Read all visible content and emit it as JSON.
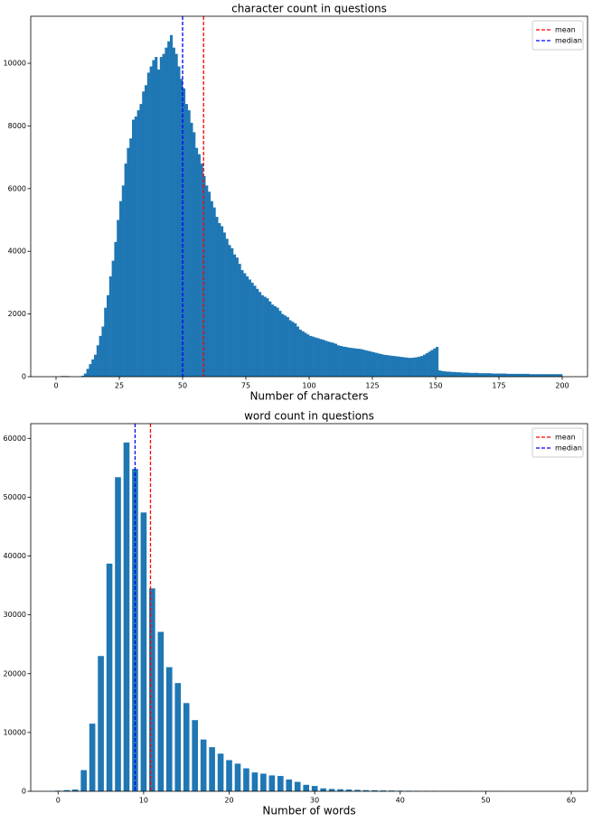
{
  "chart_data": [
    {
      "type": "histogram",
      "title": "character count in questions",
      "xlabel": "Number of characters",
      "color": "#1f77b4",
      "bins": [
        0,
        1,
        2,
        3,
        4,
        5,
        6,
        7,
        8,
        9,
        10,
        11,
        12,
        13,
        14,
        15,
        16,
        17,
        18,
        19,
        20,
        21,
        22,
        23,
        24,
        25,
        26,
        27,
        28,
        29,
        30,
        31,
        32,
        33,
        34,
        35,
        36,
        37,
        38,
        39,
        40,
        41,
        42,
        43,
        44,
        45,
        46,
        47,
        48,
        49,
        50,
        51,
        52,
        53,
        54,
        55,
        56,
        57,
        58,
        59,
        60,
        61,
        62,
        63,
        64,
        65,
        66,
        67,
        68,
        69,
        70,
        71,
        72,
        73,
        74,
        75,
        76,
        77,
        78,
        79,
        80,
        81,
        82,
        83,
        84,
        85,
        86,
        87,
        88,
        89,
        90,
        91,
        92,
        93,
        94,
        95,
        96,
        97,
        98,
        99,
        100,
        101,
        102,
        103,
        104,
        105,
        106,
        107,
        108,
        109,
        110,
        111,
        112,
        113,
        114,
        115,
        116,
        117,
        118,
        119,
        120,
        121,
        122,
        123,
        124,
        125,
        126,
        127,
        128,
        129,
        130,
        131,
        132,
        133,
        134,
        135,
        136,
        137,
        138,
        139,
        140,
        141,
        142,
        143,
        144,
        145,
        146,
        147,
        148,
        149,
        150,
        151,
        152,
        153,
        154,
        155,
        156,
        157,
        158,
        159,
        160,
        161,
        162,
        163,
        164,
        165,
        166,
        167,
        168,
        169,
        170,
        171,
        172,
        173,
        174,
        175,
        176,
        177,
        178,
        179,
        180,
        181,
        182,
        183,
        184,
        185,
        186,
        187,
        188,
        189,
        190,
        191,
        192,
        193,
        194,
        195,
        196,
        197,
        198,
        199,
        200
      ],
      "values": [
        0,
        10,
        20,
        20,
        20,
        10,
        0,
        0,
        0,
        0,
        30,
        100,
        250,
        400,
        550,
        700,
        1000,
        1300,
        1600,
        2200,
        2600,
        3200,
        3700,
        4300,
        5000,
        5600,
        6100,
        6800,
        7300,
        7600,
        8200,
        8300,
        8500,
        8700,
        9100,
        9300,
        9700,
        9900,
        10100,
        10200,
        9800,
        10200,
        10300,
        10500,
        10700,
        10900,
        10500,
        10300,
        9900,
        9500,
        9200,
        8700,
        8500,
        8100,
        7800,
        7300,
        7100,
        6800,
        6400,
        6100,
        5900,
        5600,
        5400,
        5100,
        4900,
        4800,
        4600,
        4400,
        4200,
        4100,
        3900,
        3800,
        3600,
        3400,
        3300,
        3200,
        3100,
        3000,
        2900,
        2800,
        2700,
        2600,
        2550,
        2500,
        2400,
        2300,
        2250,
        2200,
        2100,
        2000,
        1950,
        1900,
        1800,
        1750,
        1700,
        1600,
        1500,
        1450,
        1400,
        1350,
        1300,
        1280,
        1250,
        1230,
        1200,
        1180,
        1150,
        1120,
        1100,
        1080,
        1050,
        1000,
        980,
        960,
        950,
        930,
        920,
        910,
        900,
        890,
        880,
        860,
        840,
        820,
        800,
        780,
        760,
        740,
        720,
        700,
        690,
        680,
        670,
        660,
        650,
        640,
        630,
        620,
        610,
        600,
        600,
        610,
        620,
        640,
        660,
        700,
        750,
        800,
        850,
        900,
        950,
        200,
        180,
        170,
        160,
        160,
        150,
        150,
        140,
        140,
        130,
        130,
        130,
        120,
        120,
        120,
        120,
        110,
        110,
        110,
        110,
        110,
        100,
        100,
        100,
        100,
        100,
        100,
        90,
        90,
        90,
        90,
        90,
        90,
        90,
        90,
        90,
        80,
        80,
        80,
        80,
        80,
        80,
        80,
        80,
        80,
        80,
        80,
        80,
        80
      ],
      "xlim": [
        -10,
        210
      ],
      "ylim": [
        0,
        11500
      ],
      "xticks": [
        0,
        25,
        50,
        75,
        100,
        125,
        150,
        175,
        200
      ],
      "yticks": [
        0,
        2000,
        4000,
        6000,
        8000,
        10000
      ],
      "vlines": [
        {
          "name": "mean",
          "color": "#ff0000",
          "value": 58.3
        },
        {
          "name": "median",
          "color": "#0000ff",
          "value": 50
        }
      ],
      "legend": "upper right"
    },
    {
      "type": "bar",
      "title": "word count in questions",
      "xlabel": "Number of words",
      "color": "#1f77b4",
      "x": [
        0,
        1,
        2,
        3,
        4,
        5,
        6,
        7,
        8,
        9,
        10,
        11,
        12,
        13,
        14,
        15,
        16,
        17,
        18,
        19,
        20,
        21,
        22,
        23,
        24,
        25,
        26,
        27,
        28,
        29,
        30,
        31,
        32,
        33,
        34,
        35,
        36,
        37,
        38,
        39,
        40,
        41,
        42,
        43,
        44,
        45,
        46,
        47,
        48,
        49,
        50,
        51,
        52,
        53,
        54,
        55,
        56,
        57,
        58,
        59,
        60
      ],
      "values": [
        100,
        200,
        300,
        3600,
        11500,
        23000,
        38700,
        53400,
        59300,
        54800,
        47400,
        34500,
        27100,
        21100,
        18400,
        15000,
        12100,
        8800,
        7500,
        6400,
        5300,
        4700,
        3900,
        3200,
        3000,
        2700,
        2600,
        2000,
        1600,
        1100,
        900,
        500,
        400,
        350,
        300,
        250,
        200,
        180,
        150,
        130,
        100,
        90,
        80,
        70,
        60,
        50,
        50,
        40,
        40,
        30,
        30,
        30,
        20,
        20,
        15,
        15,
        10,
        10,
        5,
        5,
        0
      ],
      "xlim": [
        -3.2,
        61.9
      ],
      "ylim": [
        0,
        62500
      ],
      "xticks": [
        0,
        10,
        20,
        30,
        40,
        50,
        60
      ],
      "yticks": [
        0,
        10000,
        20000,
        30000,
        40000,
        50000,
        60000
      ],
      "vlines": [
        {
          "name": "mean",
          "color": "#ff0000",
          "value": 10.8
        },
        {
          "name": "median",
          "color": "#0000ff",
          "value": 9
        }
      ],
      "legend": "upper right"
    }
  ]
}
